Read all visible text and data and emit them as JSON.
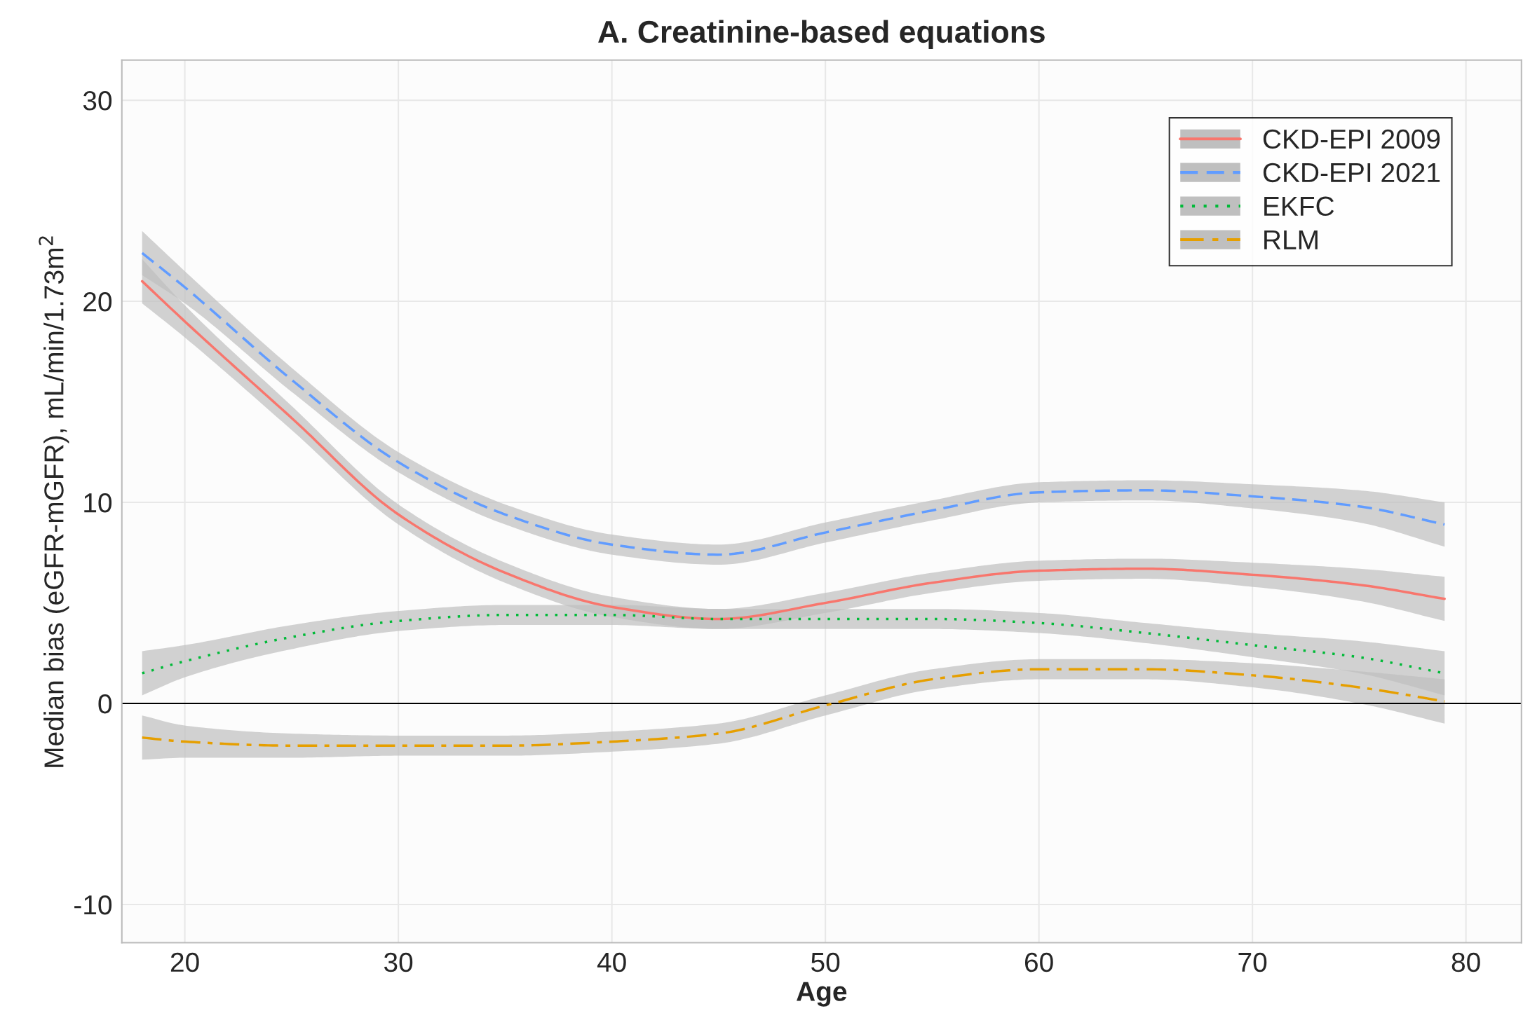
{
  "chart_data": {
    "type": "line",
    "title": "A. Creatinine-based equations",
    "xlabel": "Age",
    "ylabel": "Median bias (eGFR-mGFR), mL/min/1.73m$^{2}$",
    "x": [
      18,
      20,
      25,
      30,
      35,
      40,
      45,
      50,
      55,
      60,
      65,
      70,
      75,
      79
    ],
    "xlim": [
      17.05,
      82.6
    ],
    "xticks": [
      20,
      30,
      40,
      50,
      60,
      70,
      80
    ],
    "ylim": [
      -11.9,
      32
    ],
    "yticks": [
      -10,
      0,
      10,
      20,
      30
    ],
    "grid": true,
    "legend": "top right",
    "ref_lines": [
      {
        "axis": "y",
        "value": 0,
        "color": "#000000"
      }
    ],
    "series": [
      {
        "name": "CKD-EPI 2009",
        "color": "#f8766d",
        "line_style": "solid",
        "values": [
          21.0,
          19.0,
          14.2,
          9.4,
          6.5,
          4.8,
          4.2,
          5.0,
          6.0,
          6.6,
          6.7,
          6.4,
          5.9,
          5.2
        ],
        "lower": [
          19.9,
          18.2,
          13.6,
          8.9,
          6.0,
          4.3,
          3.7,
          4.5,
          5.5,
          6.1,
          6.2,
          5.8,
          5.1,
          4.1
        ],
        "upper": [
          22.1,
          19.8,
          14.8,
          9.9,
          7.0,
          5.3,
          4.7,
          5.5,
          6.5,
          7.1,
          7.2,
          7.0,
          6.7,
          6.3
        ]
      },
      {
        "name": "CKD-EPI 2021",
        "color": "#619cff",
        "line_style": "dashed",
        "values": [
          22.4,
          20.7,
          16.1,
          12.0,
          9.4,
          7.9,
          7.4,
          8.5,
          9.6,
          10.5,
          10.6,
          10.3,
          9.8,
          8.9
        ],
        "lower": [
          21.3,
          19.9,
          15.5,
          11.5,
          8.9,
          7.4,
          6.9,
          8.0,
          9.1,
          10.0,
          10.1,
          9.7,
          9.0,
          7.8
        ],
        "upper": [
          23.5,
          21.5,
          16.7,
          12.5,
          9.9,
          8.4,
          7.9,
          9.0,
          10.1,
          11.0,
          11.1,
          10.9,
          10.6,
          10.0
        ]
      },
      {
        "name": "EKFC",
        "color": "#00ba38",
        "line_style": "dotted",
        "values": [
          1.5,
          2.1,
          3.3,
          4.1,
          4.4,
          4.4,
          4.2,
          4.2,
          4.2,
          4.0,
          3.5,
          2.9,
          2.3,
          1.5
        ],
        "lower": [
          0.4,
          1.3,
          2.7,
          3.6,
          3.9,
          3.9,
          3.7,
          3.7,
          3.7,
          3.5,
          3.0,
          2.3,
          1.5,
          0.4
        ],
        "upper": [
          2.6,
          2.9,
          3.9,
          4.6,
          4.9,
          4.9,
          4.7,
          4.7,
          4.7,
          4.5,
          4.0,
          3.5,
          3.1,
          2.6
        ]
      },
      {
        "name": "RLM",
        "color": "#e69f00",
        "line_style": "dashdot",
        "values": [
          -1.7,
          -1.9,
          -2.1,
          -2.1,
          -2.1,
          -1.9,
          -1.5,
          -0.1,
          1.2,
          1.7,
          1.7,
          1.4,
          0.8,
          0.1
        ],
        "lower": [
          -2.8,
          -2.7,
          -2.7,
          -2.6,
          -2.6,
          -2.4,
          -2.0,
          -0.6,
          0.7,
          1.2,
          1.2,
          0.8,
          0.0,
          -1.0
        ],
        "upper": [
          -0.6,
          -1.1,
          -1.5,
          -1.6,
          -1.6,
          -1.4,
          -1.0,
          0.4,
          1.7,
          2.2,
          2.2,
          2.0,
          1.6,
          1.2
        ]
      }
    ]
  }
}
